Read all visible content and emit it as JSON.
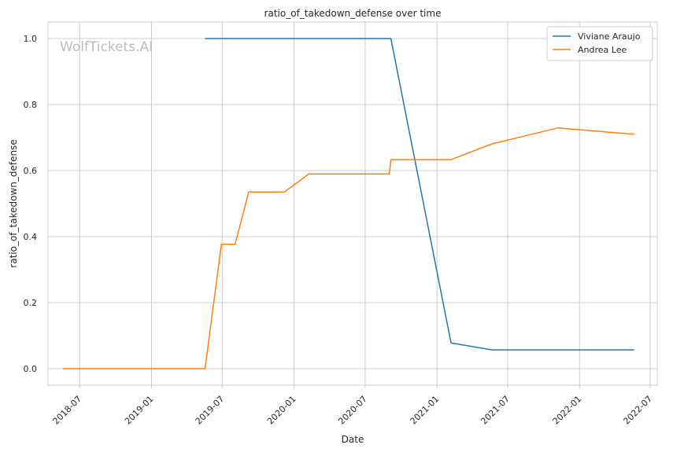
{
  "chart_data": {
    "type": "line",
    "title": "ratio_of_takedown_defense over time",
    "xlabel": "Date",
    "ylabel": "ratio_of_takedown_defense",
    "watermark": "WolfTickets.AI",
    "x_ticks": [
      "2018-07",
      "2019-01",
      "2019-07",
      "2020-01",
      "2020-07",
      "2021-01",
      "2021-07",
      "2022-01",
      "2022-07"
    ],
    "y_ticks": [
      "0.0",
      "0.2",
      "0.4",
      "0.6",
      "0.8",
      "1.0"
    ],
    "xlim": [
      "2018-04-11",
      "2022-07-19"
    ],
    "ylim": [
      -0.05,
      1.05
    ],
    "grid": true,
    "legend_position": "top-right",
    "series": [
      {
        "name": "Viviane Araujo",
        "color": "#1f77b4",
        "points": [
          {
            "x": "2019-05-18",
            "y": 1.0
          },
          {
            "x": "2020-09-05",
            "y": 1.0
          },
          {
            "x": "2021-02-06",
            "y": 0.078
          },
          {
            "x": "2021-05-22",
            "y": 0.057
          },
          {
            "x": "2022-05-21",
            "y": 0.057
          }
        ]
      },
      {
        "name": "Andrea Lee",
        "color": "#ff7f0e",
        "points": [
          {
            "x": "2018-05-19",
            "y": 0.0
          },
          {
            "x": "2019-05-18",
            "y": 0.0
          },
          {
            "x": "2019-06-29",
            "y": 0.377
          },
          {
            "x": "2019-08-03",
            "y": 0.377
          },
          {
            "x": "2019-09-07",
            "y": 0.535
          },
          {
            "x": "2019-12-07",
            "y": 0.535
          },
          {
            "x": "2020-02-08",
            "y": 0.59
          },
          {
            "x": "2020-09-01",
            "y": 0.59
          },
          {
            "x": "2020-09-05",
            "y": 0.633
          },
          {
            "x": "2021-02-06",
            "y": 0.633
          },
          {
            "x": "2021-05-22",
            "y": 0.681
          },
          {
            "x": "2021-11-06",
            "y": 0.729
          },
          {
            "x": "2022-05-21",
            "y": 0.71
          }
        ]
      }
    ]
  }
}
